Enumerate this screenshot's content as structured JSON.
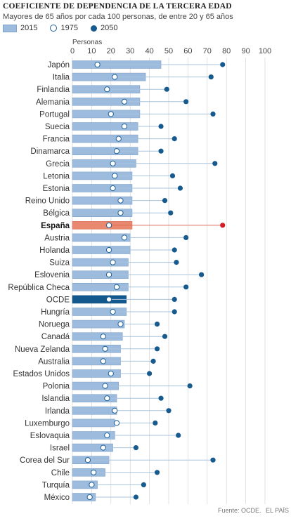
{
  "chart_data": {
    "type": "bar",
    "title": "COEFICIENTE DE DEPENDENCIA DE LA TERCERA EDAD",
    "subtitle": "Mayores de 65 años por cada 100 personas, de entre 20 y 65 años",
    "xlabel": "Personas",
    "xlim": [
      0,
      100
    ],
    "x_ticks": [
      "0",
      "10",
      "20",
      "30",
      "40",
      "50",
      "60",
      "70",
      "80",
      "90",
      "100"
    ],
    "grid": true,
    "legend_position": "top-left",
    "legend": [
      "2015",
      "1975",
      "2050"
    ],
    "categories": [
      "Japón",
      "Italia",
      "Finlandia",
      "Alemania",
      "Portugal",
      "Suecia",
      "Francia",
      "Dinamarca",
      "Grecia",
      "Letonia",
      "Estonia",
      "Reino Unido",
      "Bélgica",
      "España",
      "Austria",
      "Holanda",
      "Suiza",
      "Eslovenia",
      "República Checa",
      "OCDE",
      "Hungría",
      "Noruega",
      "Canadá",
      "Nueva Zelanda",
      "Australia",
      "Estados Unidos",
      "Polonia",
      "Islandia",
      "Irlanda",
      "Luxemburgo",
      "Eslovaquia",
      "Israel",
      "Corea del Sur",
      "Chile",
      "Turquía",
      "México"
    ],
    "highlight": {
      "España": "#e8886e",
      "OCDE": "#14598e"
    },
    "series": [
      {
        "name": "2015",
        "values": [
          46,
          38,
          35,
          35,
          35,
          34,
          34,
          34,
          33,
          31,
          31,
          31,
          31,
          31,
          30,
          30,
          29,
          29,
          29,
          28,
          28,
          27,
          26,
          25,
          25,
          25,
          24,
          23,
          23,
          22,
          22,
          21,
          19,
          17,
          13,
          12
        ]
      },
      {
        "name": "1975",
        "values": [
          13,
          22,
          18,
          27,
          20,
          27,
          24,
          23,
          21,
          22,
          21,
          25,
          25,
          19,
          27,
          19,
          21,
          19,
          23,
          19,
          21,
          25,
          16,
          17,
          16,
          20,
          17,
          18,
          22,
          23,
          18,
          16,
          8,
          11,
          10,
          9
        ]
      },
      {
        "name": "2050",
        "values": [
          78,
          72,
          49,
          59,
          73,
          46,
          53,
          46,
          74,
          52,
          56,
          48,
          51,
          78,
          59,
          53,
          54,
          67,
          59,
          53,
          53,
          44,
          48,
          44,
          42,
          40,
          61,
          46,
          50,
          43,
          55,
          33,
          73,
          44,
          37,
          33
        ]
      }
    ]
  },
  "source": "Fuente: OCDE.",
  "publisher": "EL PAÍS",
  "colors": {
    "bar": "#9dbbdd",
    "bar_border": "#7fa3cc",
    "dot_2050": "#165a8e",
    "ring_1975": "#1d5f95",
    "connector": "#a9c3de",
    "grid": "#cfcfcf",
    "spain_bar": "#e8886e",
    "spain_dot": "#d01e26",
    "ocde_bar": "#14598e"
  }
}
